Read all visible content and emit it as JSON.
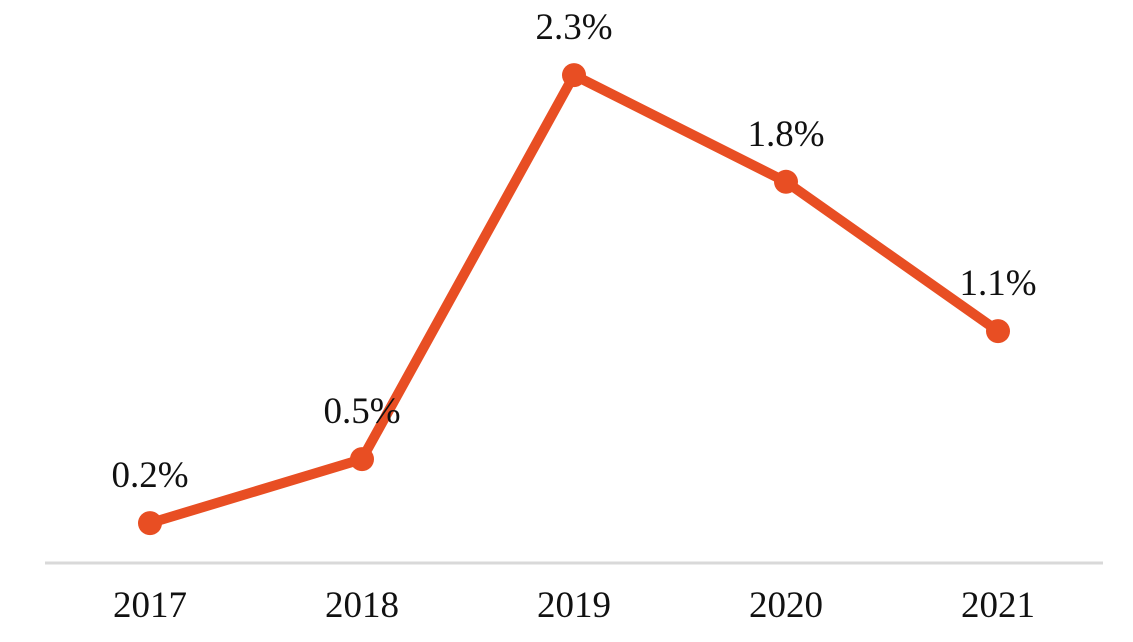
{
  "chart_data": {
    "type": "line",
    "title": "",
    "xlabel": "",
    "ylabel": "",
    "categories": [
      "2017",
      "2018",
      "2019",
      "2020",
      "2021"
    ],
    "series": [
      {
        "values": [
          0.2,
          0.5,
          2.3,
          1.8,
          1.1
        ],
        "labels": [
          "0.2%",
          "0.5%",
          "2.3%",
          "1.8%",
          "1.1%"
        ],
        "color": "#E84E23"
      }
    ],
    "ylim": [
      0,
      2.5
    ],
    "grid": false,
    "legend": "none",
    "axis_color": "#D9D9D9"
  }
}
